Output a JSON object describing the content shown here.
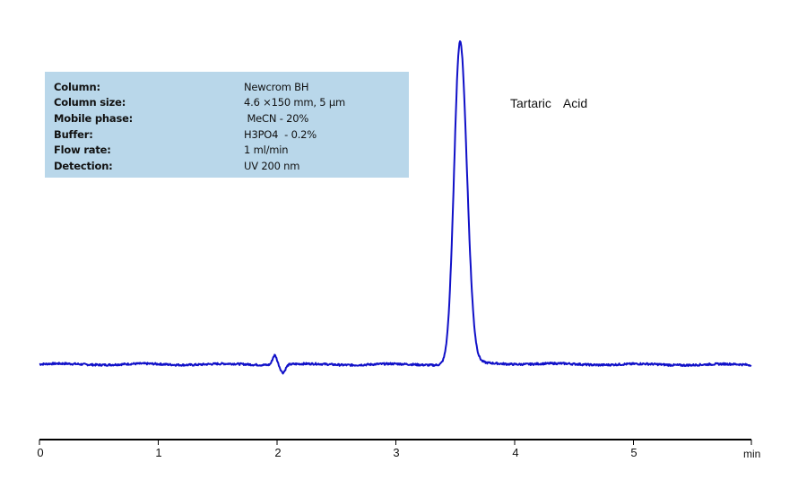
{
  "chart_data": {
    "type": "line",
    "title": "",
    "xlabel": "min",
    "ylabel": "",
    "xlim": [
      0,
      6
    ],
    "x_ticks": [
      0,
      1,
      2,
      3,
      4,
      5
    ],
    "grid": false,
    "legend": null,
    "series": [
      {
        "name": "Tartaric Acid chromatogram",
        "color": "#1010c8",
        "baseline_level": 0.0,
        "features": [
          {
            "type": "system_peak",
            "x": 1.98,
            "height": 0.03,
            "dip_x": 2.05,
            "dip_depth": -0.025
          },
          {
            "type": "peak",
            "name": "Tartaric Acid",
            "x": 3.54,
            "height": 1.0,
            "width_half": 0.08
          }
        ],
        "x": [
          0.0,
          0.5,
          1.0,
          1.5,
          1.9,
          1.98,
          2.05,
          2.2,
          2.5,
          3.0,
          3.2,
          3.35,
          3.45,
          3.5,
          3.54,
          3.58,
          3.63,
          3.7,
          3.8,
          4.0,
          4.5,
          5.0,
          5.5,
          6.0
        ],
        "y": [
          0.0,
          0.0,
          0.002,
          0.0,
          0.0,
          0.03,
          -0.025,
          0.0,
          0.0,
          0.0,
          0.0,
          0.01,
          0.35,
          0.85,
          1.0,
          0.85,
          0.25,
          0.02,
          0.008,
          0.005,
          0.0,
          0.0,
          -0.003,
          -0.003
        ]
      }
    ],
    "annotations": [
      {
        "text": "Tartaric Acid",
        "x": 4.0,
        "y": 0.82
      }
    ]
  },
  "info_box": {
    "rows": [
      {
        "label": "Column:",
        "value": "Newcrom BH"
      },
      {
        "label": "Column size:",
        "value": "4.6 ×150 mm, 5 µm"
      },
      {
        "label": "Mobile phase:",
        "value": " MeCN - 20%"
      },
      {
        "label": "Buffer:",
        "value": "H3PO4  - 0.2%"
      },
      {
        "label": "Flow rate:",
        "value": "1 ml/min"
      },
      {
        "label": "Detection:",
        "value": "UV 200 nm"
      }
    ]
  },
  "peak_label": "Tartaric  Acid",
  "axis": {
    "ticks": [
      "0",
      "1",
      "2",
      "3",
      "4",
      "5"
    ],
    "unit": "min"
  },
  "colors": {
    "trace": "#1010c8",
    "info_box_bg": "#b9d7ea",
    "axis": "#000000"
  }
}
